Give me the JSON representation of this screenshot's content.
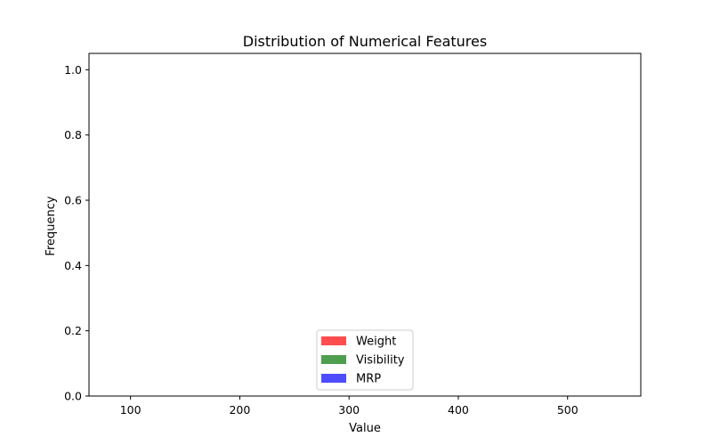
{
  "chart_data": {
    "type": "bar",
    "title": "Distribution of Numerical Features",
    "xlabel": "Value",
    "ylabel": "Frequency",
    "xlim": [
      62,
      567
    ],
    "ylim": [
      0,
      1.05
    ],
    "xticks": [
      100,
      200,
      300,
      400,
      500
    ],
    "yticks": [
      0.0,
      0.2,
      0.4,
      0.6,
      0.8,
      1.0
    ],
    "ytick_labels": [
      "0.0",
      "0.2",
      "0.4",
      "0.6",
      "0.8",
      "1.0"
    ],
    "grid": false,
    "legend_position": "lower center",
    "series": [
      {
        "name": "Weight",
        "color": "#ff4d4d",
        "values": []
      },
      {
        "name": "Visibility",
        "color": "#4d9e4d",
        "values": []
      },
      {
        "name": "MRP",
        "color": "#4d4dff",
        "values": []
      }
    ]
  }
}
